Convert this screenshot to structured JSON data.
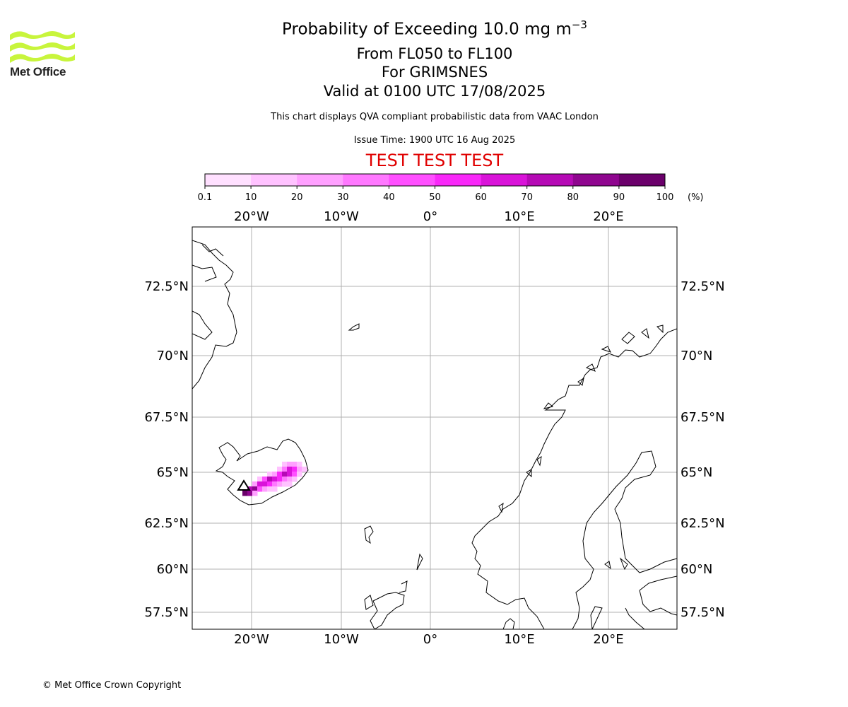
{
  "header": {
    "title_main": "Probability of Exceeding 10.0 mg m",
    "title_sup": "−3",
    "level": "From FL050 to FL100",
    "volcano": "For GRIMSNES",
    "valid": "Valid at 0100 UTC 17/08/2025",
    "disclaimer": "This chart displays QVA compliant probabilistic data from VAAC London",
    "issue": "Issue Time: 1900 UTC 16 Aug 2025",
    "test_banner": "TEST TEST TEST",
    "test_color": "#e00000"
  },
  "logo": {
    "text": "Met Office",
    "wave_color": "#c8f53c",
    "icon": "met-office-wave-logo"
  },
  "colorbar": {
    "ticks": [
      "0.1",
      "10",
      "20",
      "30",
      "40",
      "50",
      "60",
      "70",
      "80",
      "90",
      "100"
    ],
    "unit": "(%)",
    "colors": [
      "#ffe0ff",
      "#ffc2ff",
      "#ffa0ff",
      "#ff78ff",
      "#ff4fff",
      "#f928f9",
      "#d914d9",
      "#b50ab5",
      "#8f068f",
      "#6b006b"
    ]
  },
  "map": {
    "lon_labels": [
      "20°W",
      "10°W",
      "0°",
      "10°E",
      "20°E"
    ],
    "lat_labels": [
      "72.5°N",
      "70°N",
      "67.5°N",
      "65°N",
      "62.5°N",
      "60°N",
      "57.5°N"
    ],
    "extent": {
      "lon": [
        -26.5,
        27.5
      ],
      "lat": [
        56.5,
        74.5
      ]
    },
    "gridlines": true,
    "volcano_marker": "triangle",
    "volcano_name": "GRIMSNES"
  },
  "footer": {
    "copyright": "© Met Office Crown Copyright"
  }
}
